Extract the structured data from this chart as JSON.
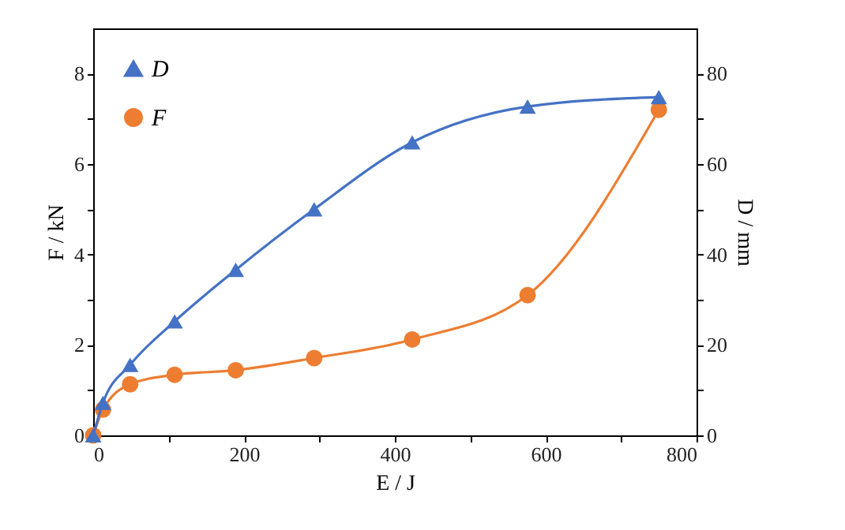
{
  "chart_data": {
    "type": "line",
    "xlabel": "E / J",
    "ylabel": "F / kN",
    "y2label": "D / mm",
    "x": [
      0,
      13,
      49,
      108,
      189,
      293,
      423,
      576,
      750
    ],
    "series": [
      {
        "name": "D",
        "color": "#4472c4",
        "axis": "y2",
        "marker": "triangle",
        "values": [
          0,
          7.2,
          15.6,
          25.2,
          36.6,
          50,
          64.8,
          72.7,
          74.8
        ]
      },
      {
        "name": "F",
        "color": "#ed7d31",
        "marker": "circle",
        "values": [
          0,
          0.57,
          1.13,
          1.34,
          1.44,
          1.71,
          2.12,
          3.1,
          7.2
        ]
      }
    ],
    "xlim": [
      0,
      800
    ],
    "xticks": [
      0,
      {
        "value": 100,
        "label": null
      },
      200,
      {
        "value": 300,
        "label": null
      },
      400,
      {
        "value": 500,
        "label": null
      },
      600,
      {
        "value": 700,
        "label": null
      },
      800
    ],
    "ylim": [
      0,
      9
    ],
    "yticks": [
      0,
      {
        "value": 1,
        "label": null
      },
      2,
      {
        "value": 3,
        "label": null
      },
      4,
      {
        "value": 5,
        "label": null
      },
      6,
      {
        "value": 7,
        "label": null
      },
      8
    ],
    "y2lim": [
      0,
      90
    ],
    "y2ticks": [
      0,
      {
        "value": 10,
        "label": null
      },
      20,
      {
        "value": 30,
        "label": null
      },
      40,
      {
        "value": 50,
        "label": null
      },
      60,
      {
        "value": 70,
        "label": null
      },
      80
    ],
    "legend": "top left",
    "grid": false,
    "line_style": "solid"
  }
}
